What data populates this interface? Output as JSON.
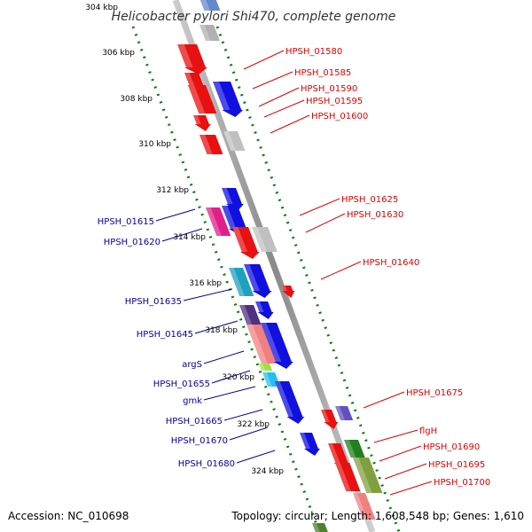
{
  "title": "Helicobacter pylori Shi470, complete genome",
  "footer": {
    "accession": "Accession: NC_010698",
    "topology": "Topology: circular; Length: 1,608,548 bp; Genes: 1,610"
  },
  "colors": {
    "forward_label": "#e00000",
    "reverse_label": "#0000a0",
    "backbone": "#999999",
    "dots": "#008000"
  },
  "kbp_ticks": [
    "304 kbp",
    "306 kbp",
    "308 kbp",
    "310 kbp",
    "312 kbp",
    "314 kbp",
    "316 kbp",
    "318 kbp",
    "320 kbp",
    "322 kbp",
    "324 kbp"
  ],
  "forward_labels": [
    "HPSH_01580",
    "HPSH_01585",
    "HPSH_01590",
    "HPSH_01595",
    "HPSH_01600",
    "HPSH_01625",
    "HPSH_01630",
    "HPSH_01640",
    "HPSH_01675",
    "flgH",
    "HPSH_01690",
    "HPSH_01695",
    "HPSH_01700"
  ],
  "reverse_labels": [
    "HPSH_01615",
    "HPSH_01620",
    "HPSH_01635",
    "HPSH_01645",
    "argS",
    "HPSH_01655",
    "gmk",
    "HPSH_01665",
    "HPSH_01670",
    "HPSH_01680"
  ]
}
